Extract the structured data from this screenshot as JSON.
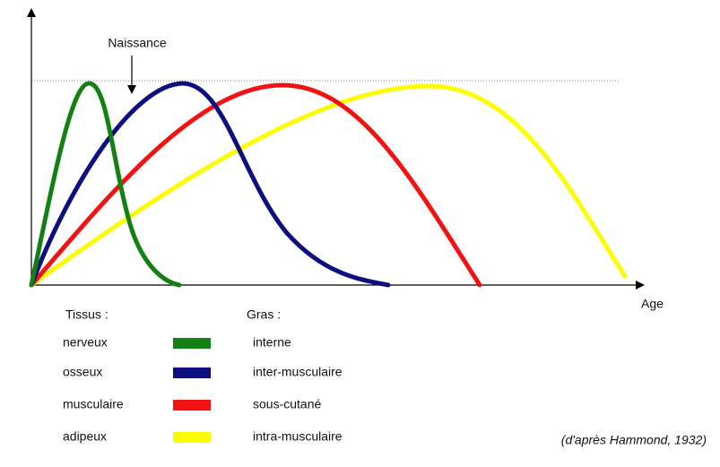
{
  "annotation": "Naissance",
  "x_axis_label": "Age",
  "legend": {
    "left_header": "Tissus :",
    "right_header": "Gras :",
    "rows": [
      {
        "tissue": "nerveux",
        "fat": "interne",
        "color": "#138013"
      },
      {
        "tissue": "osseux",
        "fat": "inter-musculaire",
        "color": "#0d0f80"
      },
      {
        "tissue": "musculaire",
        "fat": "sous-cutané",
        "color": "#f21212"
      },
      {
        "tissue": "adipeux",
        "fat": "intra-musculaire",
        "color": "#fcfc05"
      }
    ]
  },
  "source": "(d'après Hammond, 1932)"
}
